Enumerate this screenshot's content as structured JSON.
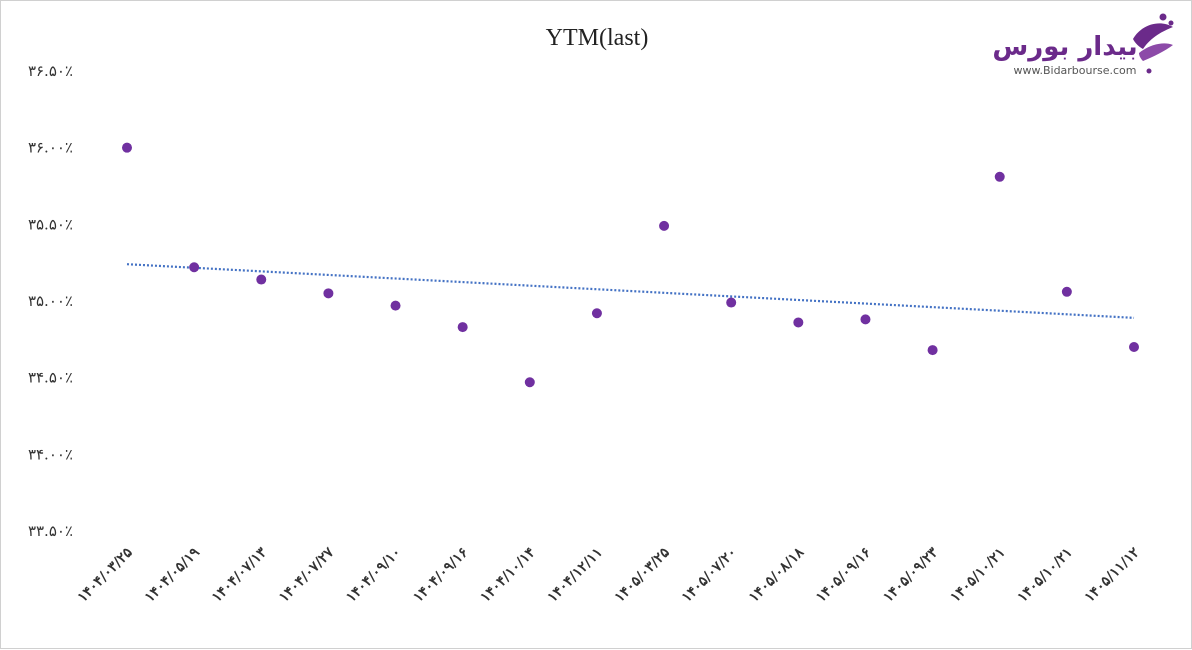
{
  "chart_data": {
    "type": "scatter",
    "title": "YTM(last)",
    "xlabel": "",
    "ylabel": "",
    "ylim": [
      33.5,
      36.5
    ],
    "y_ticks": [
      {
        "value": 36.5,
        "label": "۳۶.۵۰٪"
      },
      {
        "value": 36.0,
        "label": "۳۶.۰۰٪"
      },
      {
        "value": 35.5,
        "label": "۳۵.۵۰٪"
      },
      {
        "value": 35.0,
        "label": "۳۵.۰۰٪"
      },
      {
        "value": 34.5,
        "label": "۳۴.۵۰٪"
      },
      {
        "value": 34.0,
        "label": "۳۴.۰۰٪"
      },
      {
        "value": 33.5,
        "label": "۳۳.۵۰٪"
      }
    ],
    "categories": [
      "۱۴۰۴/۰۳/۲۵",
      "۱۴۰۴/۰۵/۱۹",
      "۱۴۰۴/۰۷/۱۳",
      "۱۴۰۴/۰۷/۲۷",
      "۱۴۰۴/۰۹/۱۰",
      "۱۴۰۴/۰۹/۱۶",
      "۱۴۰۴/۱۰/۱۴",
      "۱۴۰۴/۱۲/۱۱",
      "۱۴۰۵/۰۳/۲۵",
      "۱۴۰۵/۰۷/۲۰",
      "۱۴۰۵/۰۸/۱۸",
      "۱۴۰۵/۰۹/۱۶",
      "۱۴۰۵/۰۹/۲۳",
      "۱۴۰۵/۱۰/۲۱",
      "۱۴۰۵/۱۰/۲۱",
      "۱۴۰۵/۱۱/۱۲"
    ],
    "values": [
      36.0,
      35.22,
      35.14,
      35.05,
      34.97,
      34.83,
      34.47,
      34.92,
      35.49,
      34.99,
      34.86,
      34.88,
      34.68,
      35.81,
      35.06,
      34.7
    ],
    "trendline": {
      "type": "linear",
      "style": "dotted",
      "color": "#4472c4",
      "start": 35.24,
      "end": 34.89
    },
    "marker_color": "#7030a0",
    "grid": false,
    "legend": "none"
  },
  "logo": {
    "brand": "بیدار بورس",
    "url": "www.Bidarbourse.com",
    "color": "#6b2a8a"
  }
}
